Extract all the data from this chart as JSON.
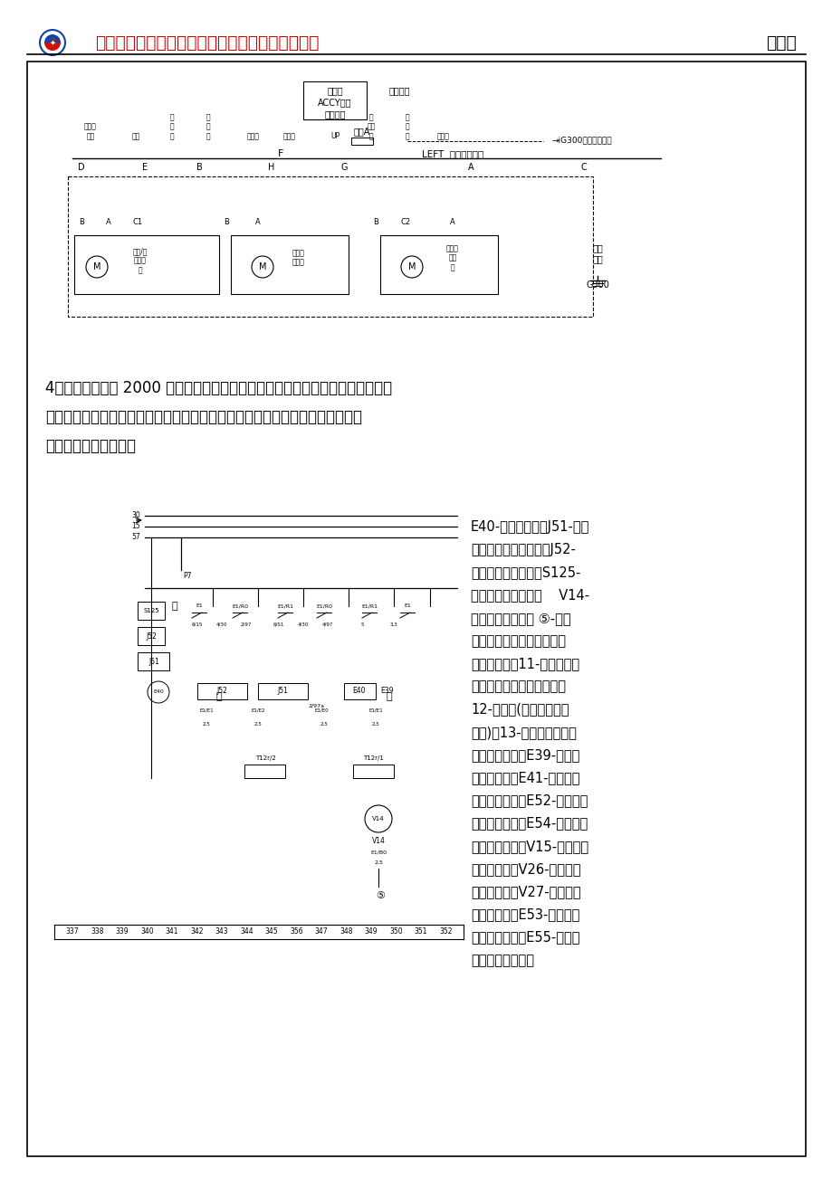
{
  "page_bg": "#ffffff",
  "border_color": "#000000",
  "header_text": "《汽车舒适安全系统故障诊断与检修》学习工作单",
  "header_right": "情境四",
  "header_line_color": "#000000",
  "question4_text": "4．下图为桑塔纳 2000 轿车电动车窗的电路图，请结合课堂的讲解的内容，写出\n该该车右后车窗控制电路的检测（即控制原理），分驾驶员控制和右后车门单独\n控制两种，分别写出。",
  "right_annotation": "E40-摇窗机开关；J51-电动\n车窗自动下降继电器；J52-\n摇窗机延时继电器；S125-\n电动摇窗机执保护器    V14-\n左前车窗机电动机 ⑤-接地\n点（在中央线路板右侧星形\n接地爪上）；11-正极连接线\n（在电动车窗机线束内）；\n12-连接线(在电动车窗线\n束内)；13-连接线（在电动\n车窗机线束内）E39-电动车\n窗安全开关；E41-电动车窗\n开关（右前）；E52-电动车窗\n开关（左后）；E54-电动车窗\n开关（右后）；V15-右前电动\n车窗电动机；V26-左后电动\n车窗电动机；V27-右后电动\n车窗电动机；E53-左后门上\n电动车窗开关；E55-右后门\n上电动车窗开关。",
  "title_color": "#cc0000",
  "logo_color": "#1155aa"
}
